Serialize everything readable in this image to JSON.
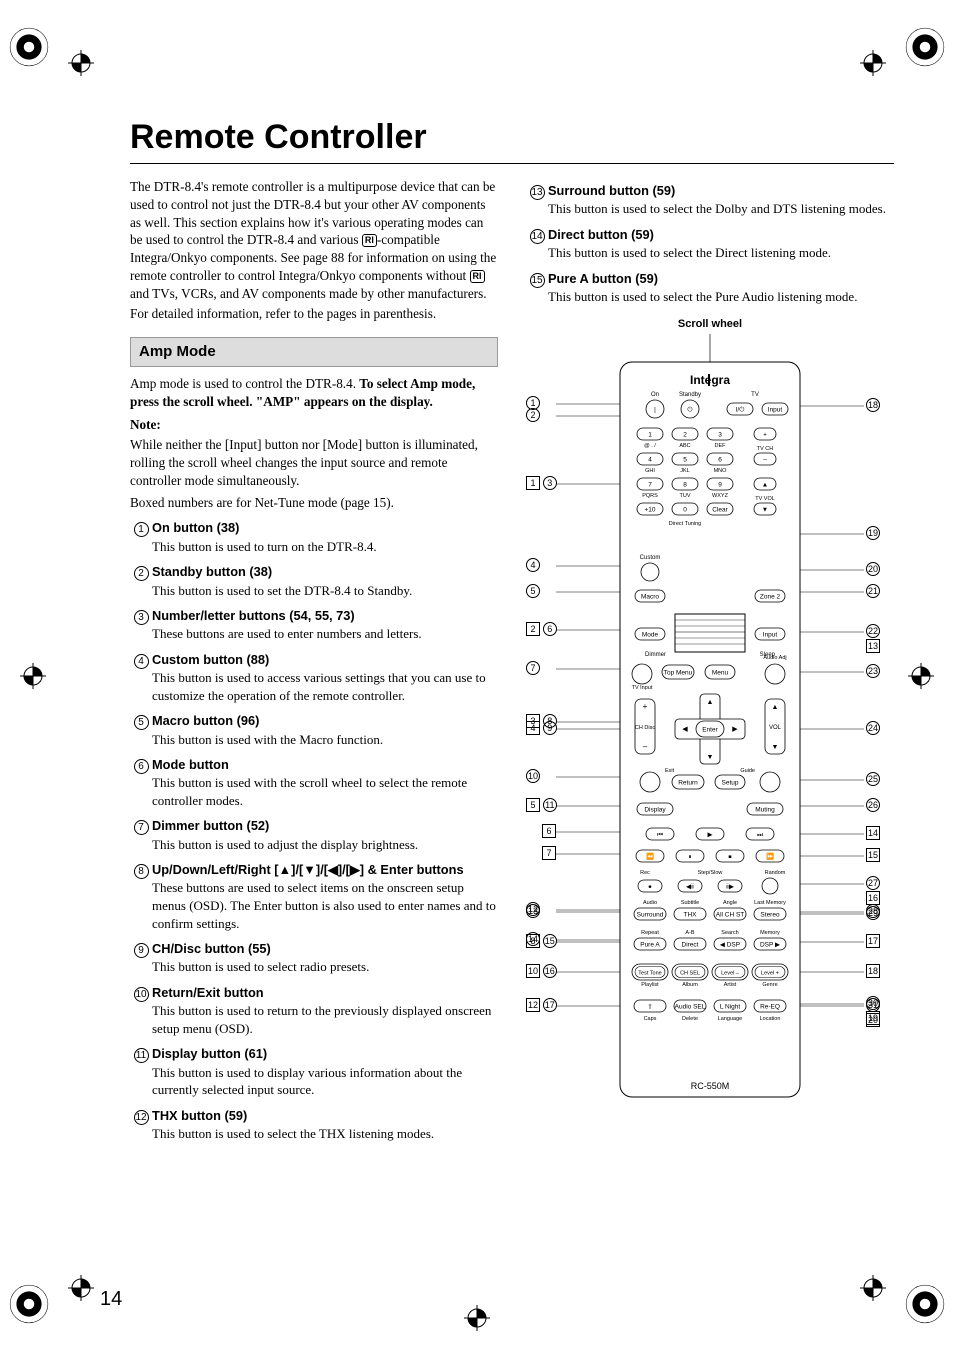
{
  "page": {
    "title": "Remote Controller",
    "page_number": "14",
    "scroll_wheel_label": "Scroll wheel"
  },
  "intro": {
    "p1a": "The DTR-8.4's remote controller is a multipurpose device that can be used to control not just the DTR-8.4 but your other AV components as well. This section explains how it's various operating modes can be used to control the DTR-8.4 and various ",
    "p1b": "-compatible Integra/Onkyo components. See page 88 for information on using the remote controller to control Integra/Onkyo components without ",
    "p1c": " and TVs, VCRs, and AV components made by other manufacturers.",
    "p2": "For detailed information, refer to the pages in parenthesis."
  },
  "amp_mode": {
    "heading": "Amp Mode",
    "intro_a": "Amp mode is used to control the DTR-8.4. ",
    "intro_b": "To select Amp mode, press the scroll wheel. \"AMP\" appears on the display.",
    "note_label": "Note:",
    "note_body": "While neither the [Input] button nor [Mode] button is illuminated, rolling the scroll wheel changes the input source and remote controller mode simultaneously.",
    "boxed_note": "Boxed numbers are for Net-Tune mode (page 15)."
  },
  "items_left": [
    {
      "n": "1",
      "title": "On button (38)",
      "desc": "This button is used to turn on the DTR-8.4."
    },
    {
      "n": "2",
      "title": "Standby button (38)",
      "desc": "This button is used to set the DTR-8.4 to Standby."
    },
    {
      "n": "3",
      "title": "Number/letter buttons (54, 55, 73)",
      "desc": "These buttons are used to enter numbers and letters."
    },
    {
      "n": "4",
      "title": "Custom button (88)",
      "desc": "This button is used to access various settings that you can use to customize the operation of the remote controller."
    },
    {
      "n": "5",
      "title": "Macro button (96)",
      "desc": "This button is used with the Macro function."
    },
    {
      "n": "6",
      "title": "Mode button",
      "desc": "This button is used with the scroll wheel to select the remote controller modes."
    },
    {
      "n": "7",
      "title": "Dimmer button (52)",
      "desc": "This button is used to adjust the display brightness."
    },
    {
      "n": "8",
      "title": "Up/Down/Left/Right [▲]/[▼]/[◀]/[▶] & Enter buttons",
      "desc": "These buttons are used to select items on the onscreen setup menus (OSD). The Enter button is also used to enter names and to confirm settings."
    },
    {
      "n": "9",
      "title": "CH/Disc button (55)",
      "desc": "This button is used to select radio presets."
    },
    {
      "n": "10",
      "title": "Return/Exit button",
      "desc": "This button is used to return to the previously displayed onscreen setup menu (OSD)."
    },
    {
      "n": "11",
      "title": "Display button (61)",
      "desc": "This button is used to display various information about the currently selected input source."
    },
    {
      "n": "12",
      "title": "THX button (59)",
      "desc": "This button is used to select the THX listening modes."
    }
  ],
  "items_right": [
    {
      "n": "13",
      "title": "Surround button (59)",
      "desc": "This button is used to select the Dolby and DTS listening modes."
    },
    {
      "n": "14",
      "title": "Direct button (59)",
      "desc": "This button is used to select the Direct listening mode."
    },
    {
      "n": "15",
      "title": "Pure A button (59)",
      "desc": "This button is used to select the Pure Audio listening mode."
    }
  ],
  "remote": {
    "model": "RC-550M",
    "brand": "Integra",
    "row_labels": {
      "on": "On",
      "standby": "Standby",
      "tv": "TV"
    },
    "keypad_sub": [
      "@ . /",
      "ABC",
      "DEF",
      "GHI",
      "JKL",
      "MNO",
      "PQRS",
      "TUV",
      "WXYZ"
    ],
    "keypad": [
      "1",
      "2",
      "3",
      "4",
      "5",
      "6",
      "7",
      "8",
      "9",
      "+10",
      "0",
      "Clear"
    ],
    "tv_side": [
      "+",
      "TV CH",
      "–",
      "▲",
      "TV VOL",
      "▼"
    ],
    "direct_tuning": "Direct Tuning",
    "custom": "Custom",
    "macro": "Macro",
    "zone2": "Zone 2",
    "mode": "Mode",
    "input": "Input",
    "dimmer": "Dimmer",
    "sleep": "Sleep",
    "tv_input": "TV Input",
    "top_menu": "Top Menu",
    "menu": "Menu",
    "audio_adj": "Audio Adj",
    "ch_disc": "CH Disc",
    "enter": "Enter",
    "vol": "VOL",
    "return": "Return",
    "exit": "Exit",
    "guide": "Guide",
    "setup": "Setup",
    "display": "Display",
    "muting": "Muting",
    "transport": [
      "⏮",
      "▶",
      "⏭",
      "⏪",
      "⏸",
      "⏹",
      "⏩"
    ],
    "rec": "Rec",
    "step_slow": "Step/Slow",
    "random": "Random",
    "transport2": [
      "●",
      "◀ⅱ",
      "ⅱ▶",
      ""
    ],
    "row_audio": [
      "Audio",
      "Subtitle",
      "Angle",
      "Last Memory"
    ],
    "row_surround": [
      "Surround",
      "THX",
      "All CH ST",
      "Stereo"
    ],
    "row_repeat_lbl": [
      "Repeat",
      "A-B",
      "Search",
      "Memory"
    ],
    "row_pure": [
      "Pure A",
      "Direct",
      "◀ DSP",
      "DSP ▶"
    ],
    "row_test": [
      "Test Tone",
      "CH SEL",
      "Level –",
      "Level +"
    ],
    "row_test_sub": [
      "Playlist",
      "Album",
      "Artist",
      "Genre"
    ],
    "row_caps": [
      "⇧",
      "Audio SEL",
      "L Night",
      "Re-EQ"
    ],
    "row_caps_sub": [
      "Caps",
      "Delete",
      "Language",
      "Location"
    ]
  },
  "callouts_left_circled": [
    "1",
    "2",
    "3",
    "4",
    "5",
    "6",
    "7",
    "8",
    "9",
    "10",
    "11",
    "12",
    "13",
    "14",
    "15",
    "16",
    "17"
  ],
  "callouts_left_boxed": [
    "1",
    "2",
    "3",
    "4",
    "5",
    "6",
    "7",
    "8",
    "9",
    "10",
    "11",
    "12"
  ],
  "callouts_right_circled": [
    "18",
    "19",
    "20",
    "21",
    "22",
    "23",
    "24",
    "25",
    "26",
    "27",
    "28",
    "29",
    "30",
    "31"
  ],
  "callouts_right_boxed": [
    "13",
    "14",
    "15",
    "16",
    "17",
    "18",
    "19",
    "20"
  ],
  "colors": {
    "section_bg": "#dddddd",
    "text": "#000000",
    "page_bg": "#ffffff"
  }
}
